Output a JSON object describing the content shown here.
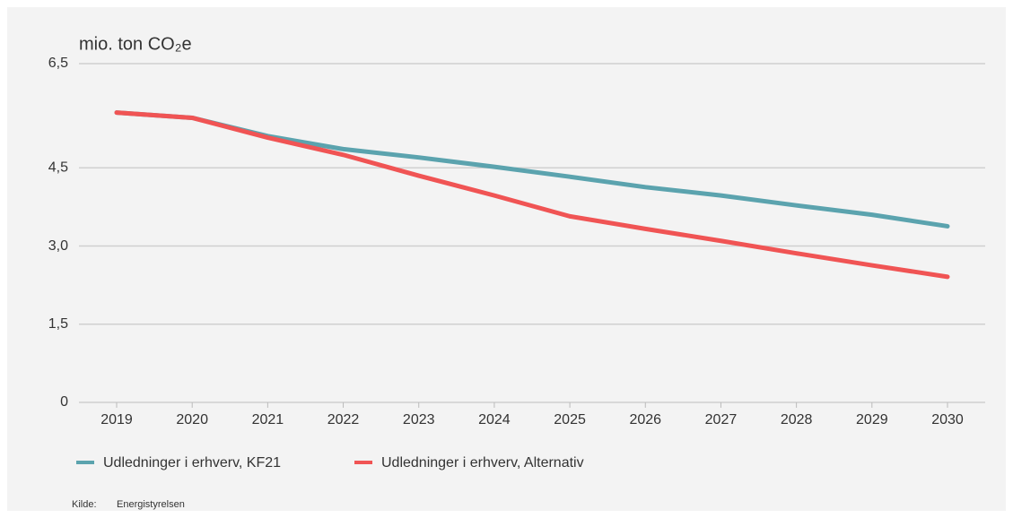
{
  "chart_data": {
    "type": "line",
    "title": "mio. ton CO₂e",
    "categories": [
      "2019",
      "2020",
      "2021",
      "2022",
      "2023",
      "2024",
      "2025",
      "2026",
      "2027",
      "2028",
      "2029",
      "2030"
    ],
    "series": [
      {
        "name": "Udledninger i erhverv, KF21",
        "color": "#5ba3ae",
        "values": [
          5.56,
          5.46,
          5.11,
          4.86,
          4.7,
          4.52,
          4.33,
          4.13,
          3.97,
          3.78,
          3.6,
          3.38
        ]
      },
      {
        "name": "Udledninger i erhverv, Alternativ",
        "color": "#f05454",
        "values": [
          5.56,
          5.46,
          5.08,
          4.75,
          4.35,
          3.97,
          3.57,
          3.33,
          3.1,
          2.86,
          2.63,
          2.41
        ]
      }
    ],
    "ylim": [
      0,
      6.5
    ],
    "yticks": [
      0,
      {
        "value": 1.5,
        "label": "1,5"
      },
      {
        "value": 3.0,
        "label": "3,0"
      },
      {
        "value": 4.5,
        "label": "4,5"
      },
      {
        "value": 6.5,
        "label": "6,5"
      }
    ],
    "grid": true,
    "source_label": "Kilde:",
    "source": "Energistyrelsen"
  }
}
